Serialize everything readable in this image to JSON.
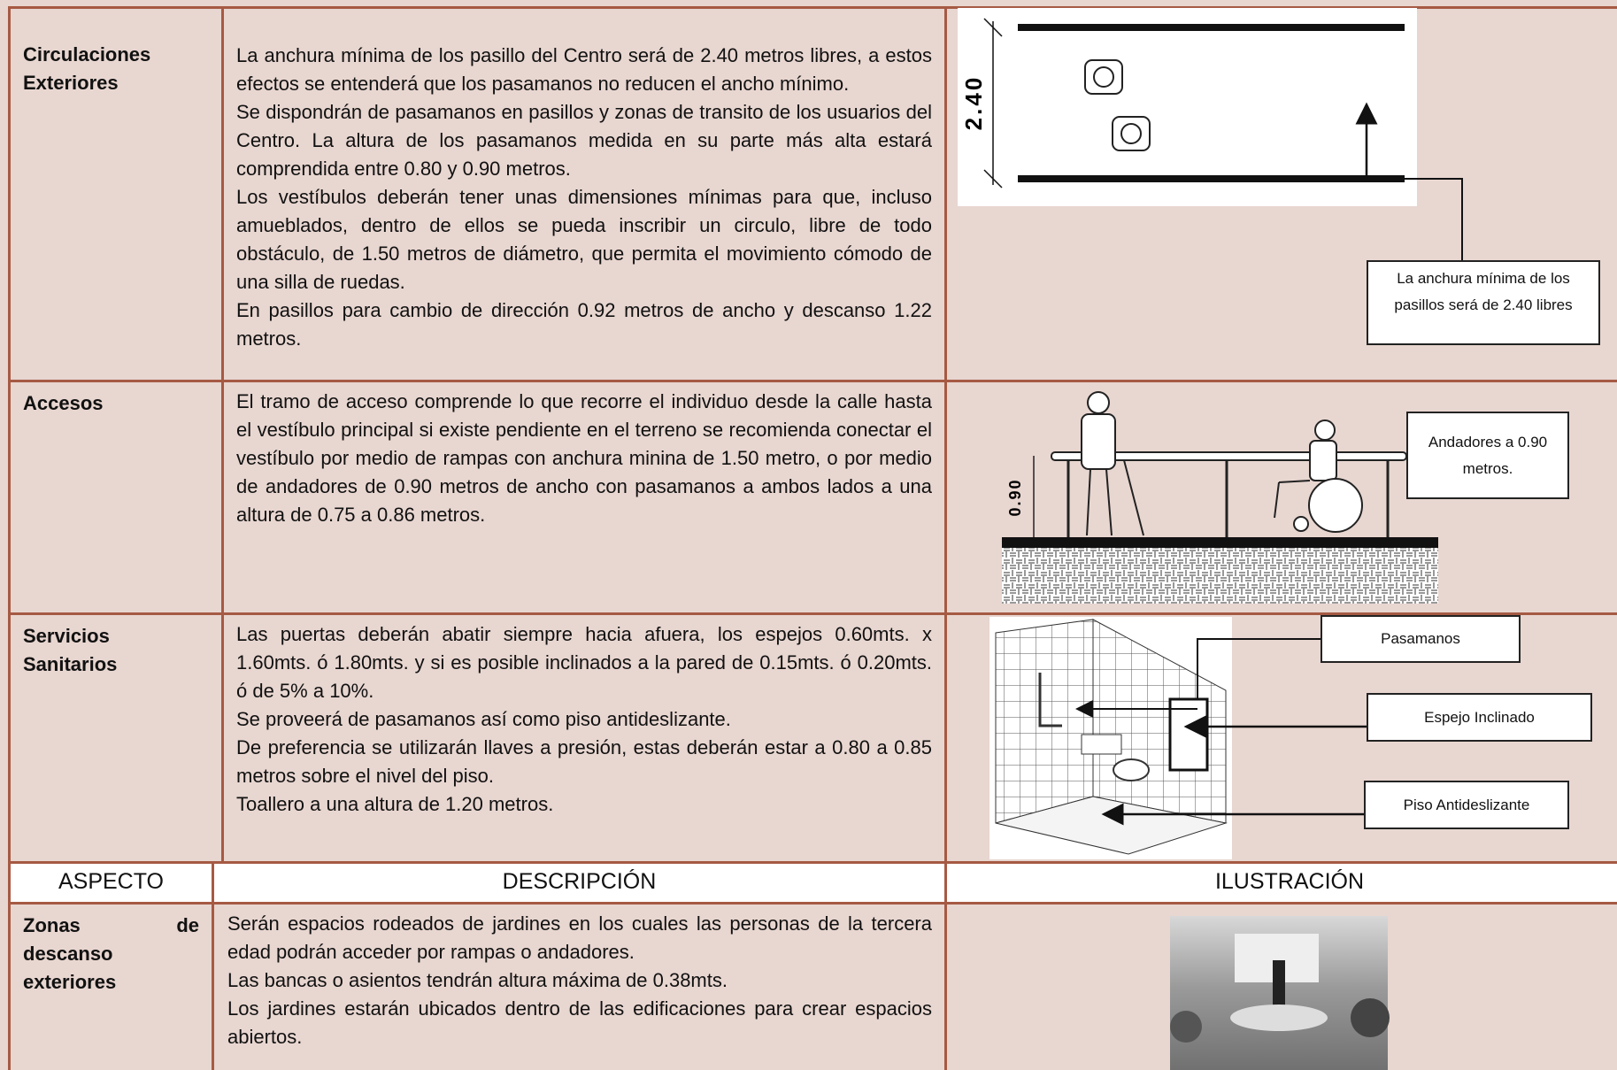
{
  "table": {
    "rows": [
      {
        "aspect": "Circulaciones Exteriores",
        "description": [
          "La anchura mínima de los pasillo del Centro será de 2.40 metros libres, a estos efectos se entenderá que los pasamanos no reducen el ancho mínimo.",
          "Se dispondrán de pasamanos en pasillos y zonas de transito de los usuarios del Centro. La altura de los pasamanos medida en su parte más alta estará comprendida entre 0.80 y 0.90 metros.",
          "Los vestíbulos deberán tener unas dimensiones mínimas para que, incluso amueblados, dentro de ellos se pueda inscribir un circulo, libre de todo obstáculo, de 1.50 metros de diámetro, que permita el movimiento cómodo de una silla de ruedas.",
          "En pasillos para cambio de dirección 0.92 metros de ancho y descanso 1.22 metros."
        ],
        "illustration": {
          "dimension": "2.40",
          "callouts": [
            "La anchura mínima de los pasillos será de 2.40 libres"
          ]
        }
      },
      {
        "aspect": "Accesos",
        "description": [
          "El tramo de acceso comprende lo que recorre el individuo desde la calle hasta el vestíbulo principal si existe pendiente en el terreno se recomienda conectar el vestíbulo por medio de rampas con anchura minina de 1.50 metro, o por medio de andadores de 0.90 metros de ancho con pasamanos a ambos lados a una altura de 0.75 a 0.86 metros."
        ],
        "illustration": {
          "dimension": "0.90",
          "callouts": [
            "Andadores a 0.90 metros."
          ]
        }
      },
      {
        "aspect": "Servicios Sanitarios",
        "description": [
          "Las puertas deberán abatir siempre hacia afuera, los espejos 0.60mts. x 1.60mts. ó 1.80mts. y si es posible inclinados a la pared de 0.15mts. ó 0.20mts. ó de 5% a 10%.",
          "Se proveerá de pasamanos así como piso antideslizante.",
          "De preferencia se utilizarán llaves a presión, estas deberán estar a 0.80 a 0.85 metros sobre el nivel del piso.",
          "Toallero a una altura de 1.20 metros."
        ],
        "illustration": {
          "callouts": [
            "Pasamanos",
            "Espejo Inclinado",
            "Piso Antideslizante"
          ]
        }
      }
    ],
    "header": [
      "ASPECTO",
      "DESCRIPCIÓN",
      "ILUSTRACIÓN"
    ],
    "more_rows": [
      {
        "aspect": "Zonas de descanso exteriores",
        "description": [
          "Serán espacios rodeados de jardines en los cuales las personas de la tercera edad podrán acceder por rampas o andadores.",
          "Las bancas o asientos tendrán altura máxima de 0.38mts.",
          "Los jardines estarán ubicados dentro de las edificaciones para crear espacios abiertos."
        ]
      }
    ]
  }
}
